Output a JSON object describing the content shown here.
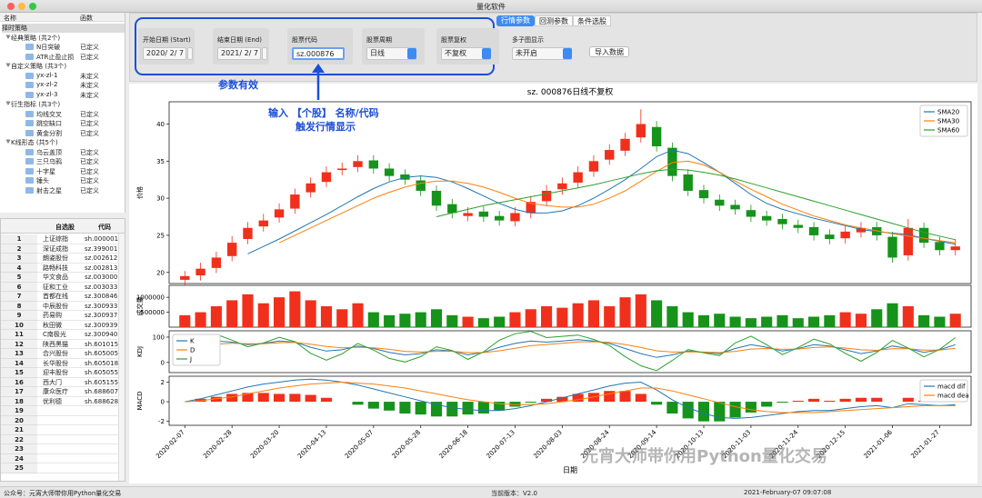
{
  "window": {
    "title": "量化软件"
  },
  "tree": {
    "headers": [
      "名称",
      "函数"
    ],
    "root": "择时策略",
    "groups": [
      {
        "label": "经典策略 (共2个)",
        "items": [
          {
            "name": "N日突破",
            "func": "已定义"
          },
          {
            "name": "ATR止盈止损",
            "func": "已定义"
          }
        ]
      },
      {
        "label": "自定义策略 (共3个)",
        "items": [
          {
            "name": "yx-zl-1",
            "func": "未定义"
          },
          {
            "name": "yx-zl-2",
            "func": "未定义"
          },
          {
            "name": "yx-zl-3",
            "func": "未定义"
          }
        ]
      },
      {
        "label": "衍生指标 (共3个)",
        "items": [
          {
            "name": "均线交叉",
            "func": "已定义"
          },
          {
            "name": "跳空缺口",
            "func": "已定义"
          },
          {
            "name": "黄金分割",
            "func": "已定义"
          }
        ]
      },
      {
        "label": "K线形态 (共5个)",
        "items": [
          {
            "name": "乌云盖顶",
            "func": "已定义"
          },
          {
            "name": "三只乌鸦",
            "func": "已定义"
          },
          {
            "name": "十字星",
            "func": "已定义"
          },
          {
            "name": "锤头",
            "func": "已定义"
          },
          {
            "name": "射击之星",
            "func": "已定义"
          }
        ]
      }
    ]
  },
  "watchlist": {
    "headers": [
      "自选股",
      "代码"
    ],
    "rows": [
      {
        "no": 1,
        "name": "上证综指",
        "code": "sh.000001"
      },
      {
        "no": 2,
        "name": "深证成指",
        "code": "sz.399001"
      },
      {
        "no": 3,
        "name": "朗姿股份",
        "code": "sz.002612"
      },
      {
        "no": 4,
        "name": "路畅科技",
        "code": "sz.002813"
      },
      {
        "no": 5,
        "name": "华文食品",
        "code": "sz.003000"
      },
      {
        "no": 6,
        "name": "征和工业",
        "code": "sz.003033"
      },
      {
        "no": 7,
        "name": "首都在线",
        "code": "sz.300846"
      },
      {
        "no": 8,
        "name": "中辰股份",
        "code": "sz.300933"
      },
      {
        "no": 9,
        "name": "药易购",
        "code": "sz.300937"
      },
      {
        "no": 10,
        "name": "秋田微",
        "code": "sz.300939"
      },
      {
        "no": 11,
        "name": "C南极光",
        "code": "sz.300940"
      },
      {
        "no": 12,
        "name": "陕西黑猫",
        "code": "sh.601015"
      },
      {
        "no": 13,
        "name": "合兴股份",
        "code": "sh.605005"
      },
      {
        "no": 14,
        "name": "长华股份",
        "code": "sh.605018"
      },
      {
        "no": 15,
        "name": "迎丰股份",
        "code": "sh.605055"
      },
      {
        "no": 16,
        "name": "西大门",
        "code": "sh.605155"
      },
      {
        "no": 17,
        "name": "康众医疗",
        "code": "sh.688607"
      },
      {
        "no": 18,
        "name": "优利德",
        "code": "sh.688628"
      },
      {
        "no": 19
      },
      {
        "no": 20
      },
      {
        "no": 21
      },
      {
        "no": 22
      },
      {
        "no": 23
      },
      {
        "no": 24
      },
      {
        "no": 25
      }
    ]
  },
  "params": {
    "tabs": [
      "行情参数",
      "回测参数",
      "条件选股"
    ],
    "fields": [
      {
        "label": "开始日期 (Start)",
        "value": "2020/ 2/ 7",
        "kind": "date"
      },
      {
        "label": "结束日期 (End)",
        "value": "2021/ 2/ 7",
        "kind": "date"
      },
      {
        "label": "股票代码",
        "value": "sz.000876",
        "kind": "text"
      },
      {
        "label": "股票周期",
        "value": "日线",
        "kind": "select"
      },
      {
        "label": "股票复权",
        "value": "不复权",
        "kind": "select"
      },
      {
        "label": "多子图显示",
        "value": "未开启",
        "kind": "select"
      }
    ],
    "button": "导入数据"
  },
  "annotations": {
    "valid": "参数有效",
    "input_line1": "输入 【个股】 名称/代码",
    "input_line2": "触发行情显示"
  },
  "status": {
    "account": "公众号：元宵大师带你用Python量化交易",
    "version": "当前版本：V2.0",
    "time": "2021-February-07 09:07:08"
  },
  "watermark": "元宵大师带你用Python量化交易",
  "chart_data": [
    {
      "type": "candlestick",
      "title": "sz. 000876日线不复权",
      "ylabel": "价格",
      "xlim": [
        -1,
        50
      ],
      "ylim": [
        18.5,
        43
      ],
      "yticks": [
        20,
        25,
        30,
        35,
        40
      ],
      "up_color": "#f0301c",
      "down_color": "#15931a",
      "legend": "upper right",
      "open": [
        19.0,
        19.6,
        20.6,
        22.2,
        24.5,
        26.2,
        27.4,
        28.6,
        30.8,
        32.2,
        33.8,
        34.2,
        35.1,
        34.0,
        33.2,
        32.4,
        31.0,
        29.2,
        27.6,
        28.2,
        27.6,
        26.9,
        28.0,
        29.6,
        31.2,
        32.1,
        33.6,
        35.2,
        36.4,
        38.2,
        39.6,
        36.8,
        33.2,
        31.1,
        29.8,
        29.1,
        28.4,
        27.6,
        27.2,
        26.4,
        26.1,
        25.1,
        24.6,
        25.4,
        26.1,
        24.8,
        22.3,
        26.0,
        24.1,
        23.0
      ],
      "high": [
        20.2,
        21.3,
        22.8,
        24.9,
        26.8,
        27.9,
        29.3,
        31.3,
        32.8,
        34.3,
        34.8,
        35.8,
        35.8,
        34.7,
        33.9,
        33.1,
        31.7,
        29.9,
        28.8,
        28.9,
        28.3,
        28.8,
        30.3,
        31.8,
        32.8,
        34.3,
        35.8,
        37.3,
        38.8,
        42.0,
        40.4,
        37.5,
        33.9,
        31.8,
        30.5,
        29.8,
        29.1,
        28.3,
        27.9,
        27.1,
        26.8,
        25.8,
        26.3,
        26.8,
        26.8,
        25.5,
        27.2,
        26.7,
        24.8,
        24.5
      ],
      "low": [
        18.3,
        18.9,
        19.9,
        21.5,
        23.8,
        25.5,
        26.7,
        27.9,
        30.1,
        31.5,
        33.1,
        33.5,
        33.3,
        32.3,
        31.8,
        30.3,
        28.3,
        27.3,
        26.9,
        26.8,
        26.3,
        26.2,
        27.3,
        28.9,
        30.5,
        31.4,
        32.9,
        34.5,
        35.7,
        37.5,
        36.3,
        32.3,
        30.3,
        29.3,
        28.3,
        27.8,
        26.8,
        26.3,
        25.8,
        25.3,
        24.3,
        23.8,
        23.9,
        24.7,
        24.3,
        21.3,
        21.6,
        23.3,
        22.3,
        22.3
      ],
      "close": [
        19.5,
        20.5,
        22,
        24,
        26,
        27,
        28.5,
        30.5,
        32,
        33.5,
        34,
        35,
        34,
        33,
        32.5,
        31,
        29,
        28,
        28,
        27.5,
        27,
        28,
        29.5,
        31,
        32,
        33.5,
        35,
        36.5,
        38,
        40,
        37,
        33,
        31,
        30,
        29,
        28.5,
        27.5,
        27,
        26.5,
        26,
        25,
        24.5,
        25.5,
        26,
        25,
        22,
        26,
        24,
        23,
        23.5
      ],
      "series": [
        {
          "name": "SMA20",
          "color": "#1f77b4",
          "values": [
            null,
            null,
            null,
            null,
            22.5,
            23.5,
            24.5,
            25.6,
            26.7,
            27.8,
            29,
            30.2,
            31.3,
            32.2,
            32.8,
            33,
            32.8,
            32.2,
            31.3,
            30.3,
            29.3,
            28.5,
            28,
            28,
            28.3,
            29,
            30,
            31.2,
            32.5,
            34,
            35.6,
            36.5,
            36,
            34.8,
            33.5,
            32,
            30.5,
            29.3,
            28.5,
            27.9,
            27.3,
            26.8,
            26.3,
            25.8,
            25.5,
            25.3,
            25.1,
            24.6,
            24.2,
            23.8
          ]
        },
        {
          "name": "SMA30",
          "color": "#ff7f0e",
          "values": [
            null,
            null,
            null,
            null,
            null,
            null,
            24,
            25,
            26,
            27,
            28,
            29,
            30,
            30.8,
            31.5,
            32,
            32.3,
            32.3,
            32,
            31.5,
            30.8,
            30,
            29.3,
            29,
            28.8,
            28.8,
            29.2,
            30,
            31,
            32.3,
            33.6,
            34.8,
            35,
            34.5,
            33.5,
            32.3,
            31.2,
            30.2,
            29.2,
            28.4,
            27.6,
            27,
            26.4,
            26,
            25.6,
            25.2,
            24.9,
            24.6,
            24.3,
            24
          ]
        },
        {
          "name": "SMA60",
          "color": "#2ca02c",
          "values": [
            null,
            null,
            null,
            null,
            null,
            null,
            null,
            null,
            null,
            null,
            null,
            null,
            null,
            null,
            null,
            null,
            27.5,
            28,
            28.5,
            29,
            29.4,
            29.8,
            30.2,
            30.6,
            31,
            31.4,
            31.8,
            32.3,
            32.8,
            33.3,
            33.7,
            33.9,
            33.8,
            33.5,
            33.1,
            32.6,
            32,
            31.4,
            30.8,
            30.2,
            29.6,
            29,
            28.4,
            27.8,
            27.2,
            26.6,
            26,
            25.4,
            24.9,
            24.4
          ]
        }
      ]
    },
    {
      "type": "bar",
      "ylabel": "成交量",
      "xlim": [
        -1,
        50
      ],
      "ylim": [
        0,
        1400000
      ],
      "yticks": [
        500000,
        1000000
      ],
      "up_color": "#f0301c",
      "down_color": "#15931a",
      "values": [
        400000,
        500000,
        700000,
        900000,
        1100000,
        800000,
        1000000,
        1200000,
        900000,
        700000,
        600000,
        800000,
        500000,
        400000,
        450000,
        500000,
        600000,
        400000,
        350000,
        300000,
        350000,
        500000,
        600000,
        700000,
        650000,
        800000,
        900000,
        700000,
        1000000,
        1100000,
        900000,
        700000,
        500000,
        400000,
        450000,
        350000,
        300000,
        350000,
        400000,
        300000,
        350000,
        400000,
        500000,
        450000,
        600000,
        800000,
        700000,
        400000,
        350000,
        450000
      ]
    },
    {
      "type": "line",
      "ylabel": "KDJ",
      "xlim": [
        -1,
        50
      ],
      "ylim": [
        -40,
        125
      ],
      "yticks": [
        0,
        100
      ],
      "legend": "upper left",
      "series": [
        {
          "name": "K",
          "color": "#1f77b4",
          "values": [
            60,
            75,
            85,
            80,
            70,
            75,
            85,
            80,
            60,
            45,
            50,
            65,
            55,
            40,
            30,
            35,
            50,
            45,
            30,
            40,
            60,
            75,
            85,
            80,
            85,
            90,
            85,
            75,
            55,
            35,
            20,
            30,
            45,
            40,
            35,
            55,
            70,
            60,
            45,
            55,
            70,
            65,
            50,
            35,
            45,
            65,
            55,
            40,
            50,
            70
          ]
        },
        {
          "name": "D",
          "color": "#ff7f0e",
          "values": [
            55,
            63,
            72,
            76,
            74,
            74,
            78,
            79,
            72,
            63,
            58,
            60,
            58,
            52,
            44,
            41,
            44,
            44,
            39,
            39,
            46,
            56,
            66,
            71,
            76,
            81,
            82,
            79,
            71,
            59,
            46,
            41,
            42,
            41,
            39,
            44,
            53,
            55,
            52,
            53,
            59,
            61,
            57,
            50,
            48,
            54,
            54,
            49,
            49,
            56
          ]
        },
        {
          "name": "J",
          "color": "#2ca02c",
          "values": [
            70,
            99,
            111,
            88,
            62,
            77,
            99,
            82,
            36,
            9,
            34,
            75,
            49,
            16,
            2,
            23,
            62,
            47,
            12,
            42,
            88,
            113,
            123,
            98,
            103,
            108,
            91,
            67,
            23,
            -13,
            -32,
            8,
            51,
            38,
            27,
            77,
            104,
            70,
            31,
            59,
            92,
            73,
            36,
            5,
            39,
            87,
            57,
            22,
            52,
            98
          ]
        }
      ]
    },
    {
      "type": "line",
      "ylabel": "MACD",
      "xlabel": "日期",
      "xlim": [
        -1,
        50
      ],
      "ylim": [
        -2.4,
        2.6
      ],
      "yticks": [
        -2,
        0,
        2
      ],
      "legend": "upper right",
      "xticks": [
        {
          "value": 0,
          "label": "2020-02-07"
        },
        {
          "value": 3,
          "label": "2020-02-28"
        },
        {
          "value": 6,
          "label": "2020-03-20"
        },
        {
          "value": 9,
          "label": "2020-04-13"
        },
        {
          "value": 12,
          "label": "2020-05-07"
        },
        {
          "value": 15,
          "label": "2020-05-28"
        },
        {
          "value": 18,
          "label": "2020-06-18"
        },
        {
          "value": 21,
          "label": "2020-07-13"
        },
        {
          "value": 24,
          "label": "2020-08-03"
        },
        {
          "value": 27,
          "label": "2020-08-24"
        },
        {
          "value": 30,
          "label": "2020-09-14"
        },
        {
          "value": 33,
          "label": "2020-10-13"
        },
        {
          "value": 36,
          "label": "2020-11-03"
        },
        {
          "value": 39,
          "label": "2020-11-24"
        },
        {
          "value": 42,
          "label": "2020-12-15"
        },
        {
          "value": 45,
          "label": "2021-01-06"
        },
        {
          "value": 48,
          "label": "2021-01-27"
        }
      ],
      "series": [
        {
          "name": "macd dif",
          "color": "#1f77b4",
          "values": [
            0,
            0.3,
            0.7,
            1.1,
            1.5,
            1.8,
            2.0,
            2.2,
            2.3,
            2.2,
            2.0,
            1.7,
            1.3,
            0.9,
            0.5,
            0.1,
            -0.3,
            -0.6,
            -0.8,
            -0.9,
            -0.9,
            -0.7,
            -0.4,
            0,
            0.4,
            0.8,
            1.2,
            1.6,
            1.9,
            2.0,
            1.2,
            0.2,
            -0.6,
            -1.2,
            -1.6,
            -1.7,
            -1.6,
            -1.4,
            -1.2,
            -1.0,
            -0.9,
            -0.9,
            -0.7,
            -0.5,
            -0.4,
            -0.6,
            -0.2,
            -0.3,
            -0.4,
            -0.3
          ]
        },
        {
          "name": "macd dea",
          "color": "#ff7f0e",
          "values": [
            0,
            0.1,
            0.3,
            0.5,
            0.8,
            1.1,
            1.4,
            1.6,
            1.8,
            1.9,
            2.0,
            1.9,
            1.8,
            1.6,
            1.4,
            1.1,
            0.8,
            0.5,
            0.2,
            0,
            -0.2,
            -0.3,
            -0.3,
            -0.2,
            0,
            0.2,
            0.5,
            0.8,
            1.1,
            1.4,
            1.4,
            1.1,
            0.7,
            0.3,
            -0.1,
            -0.5,
            -0.8,
            -1.0,
            -1.1,
            -1.1,
            -1.1,
            -1.0,
            -0.9,
            -0.8,
            -0.7,
            -0.6,
            -0.5,
            -0.4,
            -0.4,
            -0.4
          ]
        }
      ],
      "histogram": {
        "up_color": "#f0301c",
        "down_color": "#15931a",
        "values": [
          0,
          0.3,
          0.5,
          0.8,
          0.9,
          0.9,
          0.8,
          0.8,
          0.7,
          0.4,
          0,
          -0.3,
          -0.7,
          -0.9,
          -1.2,
          -1.3,
          -1.5,
          -1.5,
          -1.3,
          -1.2,
          -0.9,
          -0.5,
          -0.1,
          0.3,
          0.5,
          0.8,
          0.9,
          1.1,
          1.1,
          0.8,
          -0.3,
          -1.2,
          -1.7,
          -2,
          -2,
          -1.6,
          -1.1,
          -0.5,
          -0.1,
          0.1,
          0.3,
          0.1,
          0.3,
          0.4,
          0.4,
          0,
          0.4,
          0.1,
          0,
          0.1
        ]
      }
    }
  ]
}
